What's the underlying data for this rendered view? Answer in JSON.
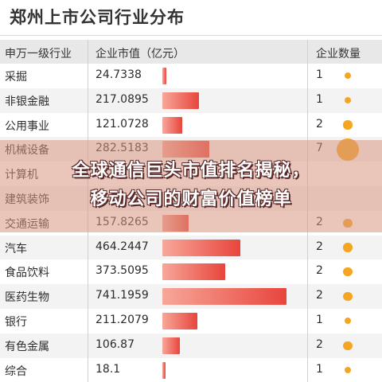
{
  "chart_data": {
    "type": "table",
    "title": "郑州上市公司行业分布",
    "columns": [
      "申万一级行业",
      "企业市值（亿元）",
      "企业数量"
    ],
    "rows": [
      {
        "industry": "采掘",
        "market_value": "24.7338",
        "count": "1",
        "value": 24.7338,
        "n": 1
      },
      {
        "industry": "非银金融",
        "market_value": "217.0895",
        "count": "1",
        "value": 217.0895,
        "n": 1
      },
      {
        "industry": "公用事业",
        "market_value": "121.0728",
        "count": "2",
        "value": 121.0728,
        "n": 2
      },
      {
        "industry": "机械设备",
        "market_value": "282.5183",
        "count": "7",
        "value": 282.5183,
        "n": 7
      },
      {
        "industry": "计算机",
        "market_value": "",
        "count": "",
        "value": null,
        "n": null
      },
      {
        "industry": "建筑装饰",
        "market_value": "",
        "count": "",
        "value": null,
        "n": null
      },
      {
        "industry": "交通运输",
        "market_value": "157.8265",
        "count": "2",
        "value": 157.8265,
        "n": 2
      },
      {
        "industry": "汽车",
        "market_value": "464.2447",
        "count": "2",
        "value": 464.2447,
        "n": 2
      },
      {
        "industry": "食品饮料",
        "market_value": "373.5095",
        "count": "2",
        "value": 373.5095,
        "n": 2
      },
      {
        "industry": "医药生物",
        "market_value": "741.1959",
        "count": "2",
        "value": 741.1959,
        "n": 2
      },
      {
        "industry": "银行",
        "market_value": "211.2079",
        "count": "1",
        "value": 211.2079,
        "n": 1
      },
      {
        "industry": "有色金属",
        "market_value": "106.87",
        "count": "2",
        "value": 106.87,
        "n": 2
      },
      {
        "industry": "综合",
        "market_value": "18.1",
        "count": "1",
        "value": 18.1,
        "n": 1
      }
    ],
    "value_max": 741.1959,
    "bar_color_start": "#f7a79a",
    "bar_color_end": "#e8453c",
    "dot_color": "#f4a623"
  },
  "overlay": {
    "line1": "全球通信巨头市值排名揭秘，",
    "line2": "移动公司的财富价值榜单"
  }
}
